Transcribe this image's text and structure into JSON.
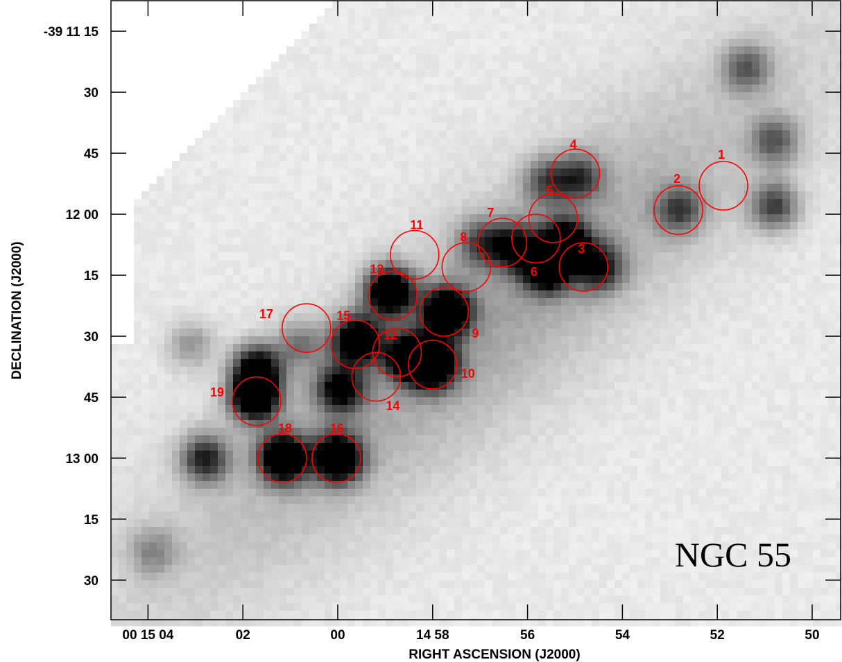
{
  "chart_data": {
    "type": "heatmap",
    "title": "NGC 55",
    "xlabel": "RIGHT ASCENSION (J2000)",
    "ylabel": "DECLINATION (J2000)",
    "colormap": "grayscale-inverted",
    "x_ticks": [
      "00 15 04",
      "02",
      "00",
      "14 58",
      "56",
      "54",
      "52",
      "50"
    ],
    "y_ticks": [
      "-39 11 15",
      "30",
      "45",
      "12 00",
      "15",
      "30",
      "45",
      "13 00",
      "15",
      "30"
    ],
    "source_color": "#ff0000",
    "sources": [
      {
        "id": "1",
        "ra": "00 14 51.87",
        "dec": "-39 11 53"
      },
      {
        "id": "2",
        "ra": "00 14 52.82",
        "dec": "-39 11 59"
      },
      {
        "id": "3",
        "ra": "00 14 54.82",
        "dec": "-39 12 13"
      },
      {
        "id": "4",
        "ra": "00 14 54.99",
        "dec": "-39 11 50"
      },
      {
        "id": "5",
        "ra": "00 14 55.46",
        "dec": "-39 12 01"
      },
      {
        "id": "6",
        "ra": "00 14 55.82",
        "dec": "-39 12 06"
      },
      {
        "id": "7",
        "ra": "00 14 56.53",
        "dec": "-39 12 07"
      },
      {
        "id": "8",
        "ra": "00 14 57.29",
        "dec": "-39 12 13"
      },
      {
        "id": "9",
        "ra": "00 14 57.76",
        "dec": "-39 12 24"
      },
      {
        "id": "10",
        "ra": "00 14 58.00",
        "dec": "-39 12 37"
      },
      {
        "id": "11",
        "ra": "00 14 58.38",
        "dec": "-39 12 10"
      },
      {
        "id": "12",
        "ra": "00 14 58.75",
        "dec": "-39 12 34"
      },
      {
        "id": "13",
        "ra": "00 14 58.84",
        "dec": "-39 12 20"
      },
      {
        "id": "14",
        "ra": "00 14 59.19",
        "dec": "-39 12 40"
      },
      {
        "id": "15",
        "ra": "00 14 59.63",
        "dec": "-39 12 32"
      },
      {
        "id": "16",
        "ra": "00 15 00.03",
        "dec": "-39 13 00"
      },
      {
        "id": "17",
        "ra": "00 15 00.66",
        "dec": "-39 12 28"
      },
      {
        "id": "18",
        "ra": "00 15 01.17",
        "dec": "-39 13 00"
      },
      {
        "id": "19",
        "ra": "00 15 01.71",
        "dec": "-39 12 46"
      }
    ],
    "emission_knots": [
      {
        "ra_s": 60.0,
        "dec_s": 780,
        "intensity": 1.0
      },
      {
        "ra_s": 61.15,
        "dec_s": 780,
        "intensity": 1.0
      },
      {
        "ra_s": 61.75,
        "dec_s": 765,
        "intensity": 1.0
      },
      {
        "ra_s": 61.7,
        "dec_s": 758,
        "intensity": 0.8
      },
      {
        "ra_s": 62.8,
        "dec_s": 780,
        "intensity": 0.6
      },
      {
        "ra_s": 58.0,
        "dec_s": 757,
        "intensity": 1.0
      },
      {
        "ra_s": 57.7,
        "dec_s": 744,
        "intensity": 1.0
      },
      {
        "ra_s": 58.9,
        "dec_s": 739,
        "intensity": 1.0
      },
      {
        "ra_s": 59.6,
        "dec_s": 751,
        "intensity": 0.95
      },
      {
        "ra_s": 59.95,
        "dec_s": 763,
        "intensity": 0.7
      },
      {
        "ra_s": 58.5,
        "dec_s": 755,
        "intensity": 0.8
      },
      {
        "ra_s": 55.6,
        "dec_s": 733,
        "intensity": 0.95
      },
      {
        "ra_s": 55.2,
        "dec_s": 727,
        "intensity": 0.85
      },
      {
        "ra_s": 54.5,
        "dec_s": 733,
        "intensity": 0.6
      },
      {
        "ra_s": 56.3,
        "dec_s": 728,
        "intensity": 0.6
      },
      {
        "ra_s": 54.9,
        "dec_s": 711,
        "intensity": 0.45
      },
      {
        "ra_s": 55.6,
        "dec_s": 712,
        "intensity": 0.4
      },
      {
        "ra_s": 52.8,
        "dec_s": 719,
        "intensity": 0.45
      },
      {
        "ra_s": 50.8,
        "dec_s": 718,
        "intensity": 0.5
      },
      {
        "ra_s": 50.8,
        "dec_s": 702,
        "intensity": 0.4
      },
      {
        "ra_s": 51.4,
        "dec_s": 684,
        "intensity": 0.4
      },
      {
        "ra_s": 63.1,
        "dec_s": 752,
        "intensity": 0.25
      },
      {
        "ra_s": 60.8,
        "dec_s": 752,
        "intensity": 0.3
      },
      {
        "ra_s": 63.9,
        "dec_s": 803,
        "intensity": 0.25
      },
      {
        "ra_s": 57.0,
        "dec_s": 727,
        "intensity": 0.4
      }
    ]
  }
}
